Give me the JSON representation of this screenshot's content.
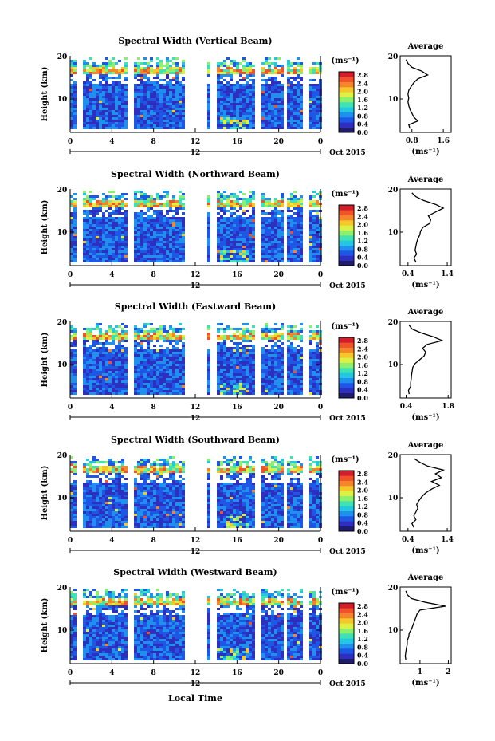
{
  "figure": {
    "xlabel": "Local Time",
    "height_label": "Height (km)",
    "date_label": "Oct 2015",
    "x_ticks": [
      "0",
      "4",
      "8",
      "12",
      "16",
      "20",
      "0"
    ],
    "day_tick": "12",
    "y_ticks": [
      "20",
      "10"
    ],
    "colorbar_unit": "(ms⁻¹)",
    "colorbar_ticks": [
      "2.8",
      "2.4",
      "2.0",
      "1.6",
      "1.2",
      "0.8",
      "0.4",
      "0.0"
    ],
    "colorbar_colors": [
      "#1f1c6e",
      "#2f2fbf",
      "#1e56e6",
      "#1f90ee",
      "#23c8e0",
      "#3fe3b3",
      "#8cf06e",
      "#dcf046",
      "#f5c72b",
      "#f3862a",
      "#f0532a",
      "#d11e2a"
    ],
    "average_title": "Average",
    "average_unit": "(ms⁻¹)"
  },
  "chart_data": [
    {
      "type": "heatmap",
      "title": "Spectral Width (Vertical Beam)",
      "avg_xticks": [
        "0.8",
        "1.6"
      ],
      "avg_xlim": [
        0.5,
        1.8
      ],
      "avg_profile": [
        [
          0.75,
          2
        ],
        [
          0.72,
          3
        ],
        [
          0.95,
          4
        ],
        [
          0.85,
          5
        ],
        [
          0.8,
          6
        ],
        [
          0.75,
          7
        ],
        [
          0.72,
          8
        ],
        [
          0.7,
          9
        ],
        [
          0.72,
          10
        ],
        [
          0.7,
          11
        ],
        [
          0.72,
          12
        ],
        [
          0.78,
          13
        ],
        [
          0.85,
          14
        ],
        [
          0.95,
          15
        ],
        [
          1.2,
          16
        ],
        [
          1.05,
          17
        ],
        [
          0.8,
          18
        ],
        [
          0.7,
          19
        ],
        [
          0.65,
          20
        ]
      ]
    },
    {
      "type": "heatmap",
      "title": "Spectral Width (Northward Beam)",
      "avg_xticks": [
        "0.4",
        "1.4"
      ],
      "avg_xlim": [
        0.2,
        1.5
      ],
      "avg_profile": [
        [
          0.6,
          2
        ],
        [
          0.55,
          3
        ],
        [
          0.62,
          4
        ],
        [
          0.58,
          5
        ],
        [
          0.6,
          6
        ],
        [
          0.62,
          7
        ],
        [
          0.65,
          8
        ],
        [
          0.7,
          9
        ],
        [
          0.72,
          10
        ],
        [
          0.78,
          11
        ],
        [
          0.95,
          12
        ],
        [
          0.98,
          13
        ],
        [
          0.92,
          14
        ],
        [
          1.1,
          15
        ],
        [
          1.3,
          16
        ],
        [
          1.1,
          17
        ],
        [
          0.8,
          18
        ],
        [
          0.6,
          19
        ],
        [
          0.5,
          20
        ]
      ]
    },
    {
      "type": "heatmap",
      "title": "Spectral Width (Eastward Beam)",
      "avg_xticks": [
        "0.4",
        "1.8"
      ],
      "avg_xlim": [
        0.2,
        1.9
      ],
      "avg_profile": [
        [
          0.5,
          2
        ],
        [
          0.48,
          3
        ],
        [
          0.55,
          4
        ],
        [
          0.55,
          5
        ],
        [
          0.57,
          6
        ],
        [
          0.58,
          7
        ],
        [
          0.6,
          8
        ],
        [
          0.62,
          9
        ],
        [
          0.7,
          10
        ],
        [
          0.85,
          11
        ],
        [
          1.0,
          12
        ],
        [
          1.05,
          13
        ],
        [
          0.95,
          14
        ],
        [
          1.1,
          15
        ],
        [
          1.6,
          16
        ],
        [
          1.3,
          17
        ],
        [
          0.9,
          18
        ],
        [
          0.6,
          19
        ],
        [
          0.5,
          20
        ]
      ]
    },
    {
      "type": "heatmap",
      "title": "Spectral Width (Southward Beam)",
      "avg_xticks": [
        "0.4",
        "1.4"
      ],
      "avg_xlim": [
        0.2,
        1.5
      ],
      "avg_profile": [
        [
          0.55,
          2
        ],
        [
          0.5,
          3
        ],
        [
          0.6,
          4
        ],
        [
          0.55,
          5
        ],
        [
          0.6,
          6
        ],
        [
          0.65,
          7
        ],
        [
          0.62,
          8
        ],
        [
          0.68,
          9
        ],
        [
          0.75,
          10
        ],
        [
          0.85,
          11
        ],
        [
          1.0,
          12
        ],
        [
          1.2,
          13
        ],
        [
          1.0,
          14
        ],
        [
          1.25,
          15
        ],
        [
          1.1,
          16
        ],
        [
          1.3,
          17
        ],
        [
          0.9,
          18
        ],
        [
          0.7,
          19
        ],
        [
          0.55,
          20
        ]
      ]
    },
    {
      "type": "heatmap",
      "title": "Spectral Width (Westward Beam)",
      "avg_xticks": [
        "1",
        "2"
      ],
      "avg_xlim": [
        0.3,
        2.1
      ],
      "avg_profile": [
        [
          0.5,
          2
        ],
        [
          0.48,
          3
        ],
        [
          0.5,
          4
        ],
        [
          0.52,
          5
        ],
        [
          0.55,
          6
        ],
        [
          0.55,
          7
        ],
        [
          0.6,
          8
        ],
        [
          0.62,
          9
        ],
        [
          0.7,
          10
        ],
        [
          0.75,
          11
        ],
        [
          0.8,
          12
        ],
        [
          0.85,
          13
        ],
        [
          0.9,
          14
        ],
        [
          1.0,
          15
        ],
        [
          1.9,
          16
        ],
        [
          1.2,
          17
        ],
        [
          0.7,
          18
        ],
        [
          0.55,
          19
        ],
        [
          0.5,
          20
        ]
      ]
    }
  ]
}
